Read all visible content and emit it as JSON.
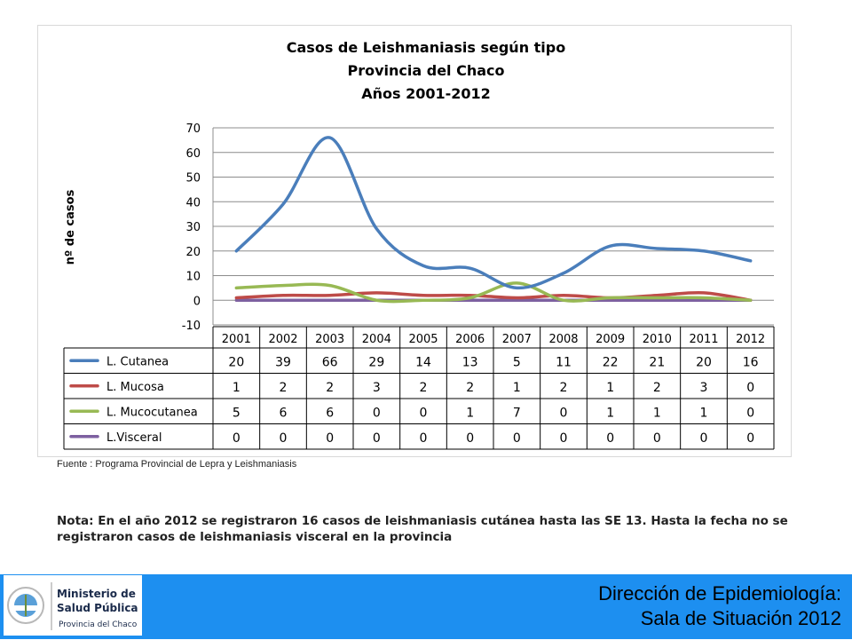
{
  "chart_data": {
    "type": "line",
    "title": [
      "Casos de Leishmaniasis según tipo",
      "Provincia del Chaco",
      "Años 2001-2012"
    ],
    "ylabel": "nº de casos",
    "xlabel": "",
    "ylim": [
      -10,
      70
    ],
    "yticks": [
      -10,
      0,
      10,
      20,
      30,
      40,
      50,
      60,
      70
    ],
    "grid": true,
    "categories": [
      "2001",
      "2002",
      "2003",
      "2004",
      "2005",
      "2006",
      "2007",
      "2008",
      "2009",
      "2010",
      "2011",
      "2012"
    ],
    "series": [
      {
        "name": "L. Cutanea",
        "color": "#4a7ebb",
        "values": [
          20,
          39,
          66,
          29,
          14,
          13,
          5,
          11,
          22,
          21,
          20,
          16
        ]
      },
      {
        "name": "L. Mucosa",
        "color": "#be4b48",
        "values": [
          1,
          2,
          2,
          3,
          2,
          2,
          1,
          2,
          1,
          2,
          3,
          0
        ]
      },
      {
        "name": "L. Mucocutanea",
        "color": "#98b954",
        "values": [
          5,
          6,
          6,
          0,
          0,
          1,
          7,
          0,
          1,
          1,
          1,
          0
        ]
      },
      {
        "name": "L.Visceral",
        "color": "#7d60a0",
        "values": [
          0,
          0,
          0,
          0,
          0,
          0,
          0,
          0,
          0,
          0,
          0,
          0
        ]
      }
    ]
  },
  "source": "Fuente : Programa Provincial de Lepra y Leishmaniasis",
  "note": "Nota: En el año 2012 se registraron 16 casos de leishmaniasis cutánea hasta las SE 13. Hasta la fecha no se registraron casos de leishmaniasis visceral en la provincia",
  "logo": {
    "line1": "Ministerio de",
    "line2": "Salud Pública",
    "line3": "Provincia del Chaco"
  },
  "footer": {
    "line1": "Dirección de Epidemiología:",
    "line2": "Sala de Situación 2012"
  }
}
